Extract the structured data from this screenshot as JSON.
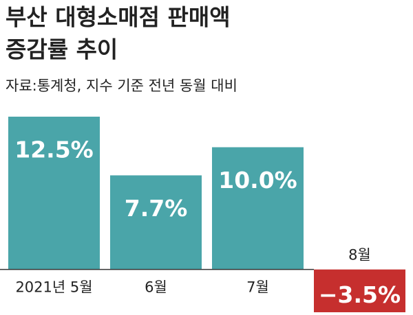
{
  "chart_data": {
    "type": "bar",
    "title": [
      "부산 대형소매점 판매액",
      "증감률 추이"
    ],
    "subtitle": "자료:통계청, 지수 기준 전년 동월 대비",
    "categories": [
      "2021년 5월",
      "6월",
      "7월",
      "8월"
    ],
    "values": [
      12.5,
      7.7,
      10.0,
      -3.5
    ],
    "value_labels": [
      "12.5%",
      "7.7%",
      "10.0%",
      "−3.5%"
    ],
    "color": "#4aa5a9",
    "negative_color": "#c62f2e"
  }
}
